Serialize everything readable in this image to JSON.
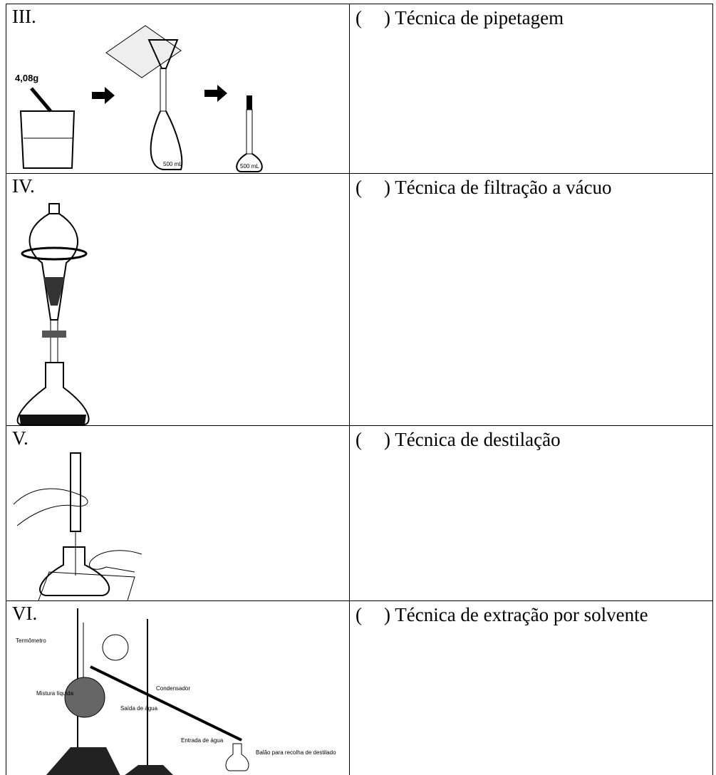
{
  "table": {
    "rows": [
      {
        "label": "III.",
        "open": "(",
        "text": ") Técnica de pipetagem",
        "figure": {
          "mass": "4,08g",
          "flask1": "500 mL",
          "flask2": "500 mL"
        }
      },
      {
        "label": "IV.",
        "open": "(",
        "text": ") Técnica de filtração a vácuo"
      },
      {
        "label": "V.",
        "open": "(",
        "text": ") Técnica de destilação"
      },
      {
        "label": "VI.",
        "open": "(",
        "text": ") Técnica de extração por solvente",
        "figure": {
          "thermometer": "Termômetro",
          "condenser": "Condensador",
          "mixture": "Mistura líquida",
          "water_out": "Saída de água",
          "water_in": "Entrada de água",
          "flask": "Balão para recolha de destilado"
        }
      }
    ]
  }
}
